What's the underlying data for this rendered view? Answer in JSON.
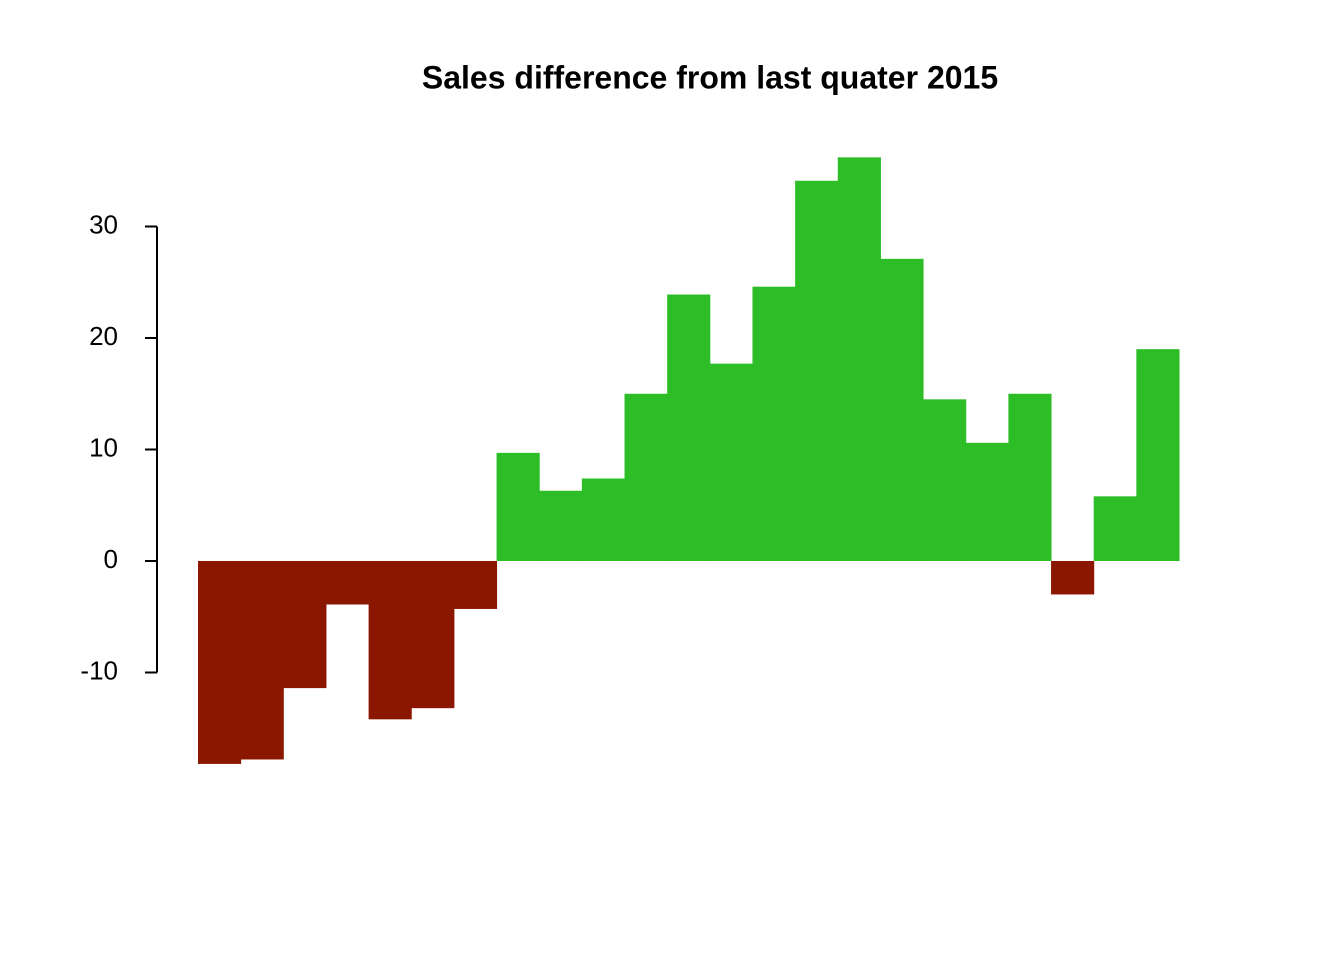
{
  "chart_data": {
    "type": "bar",
    "title": "Sales difference from last quater 2015",
    "values": [
      -18.2,
      -17.8,
      -11.4,
      -3.9,
      -14.2,
      -13.2,
      -4.3,
      9.7,
      6.3,
      7.4,
      15.0,
      23.9,
      17.7,
      24.6,
      34.1,
      36.2,
      27.1,
      14.5,
      10.6,
      15.0,
      -3.0,
      5.8,
      19.0
    ],
    "color_positive": "#2dbd27",
    "color_negative": "#8b1700",
    "ylim": [
      -20,
      40
    ],
    "yticks": [
      -10,
      0,
      10,
      20,
      30
    ],
    "grid": false
  }
}
